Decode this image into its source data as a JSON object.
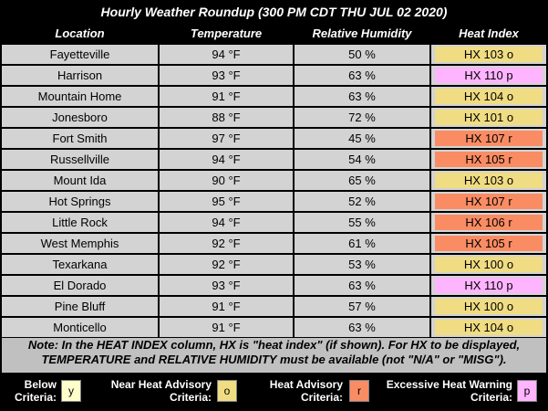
{
  "title": "Hourly Weather Roundup (300 PM CDT THU JUL 02 2020)",
  "headers": {
    "location": "Location",
    "temperature": "Temperature",
    "humidity": "Relative Humidity",
    "heat_index": "Heat Index"
  },
  "rows": [
    {
      "location": "Fayetteville",
      "temperature": "94 °F",
      "humidity": "50 %",
      "heat_index": "HX 103 o",
      "level": "o"
    },
    {
      "location": "Harrison",
      "temperature": "93 °F",
      "humidity": "63 %",
      "heat_index": "HX 110 p",
      "level": "p"
    },
    {
      "location": "Mountain Home",
      "temperature": "91 °F",
      "humidity": "63 %",
      "heat_index": "HX 104 o",
      "level": "o"
    },
    {
      "location": "Jonesboro",
      "temperature": "88 °F",
      "humidity": "72 %",
      "heat_index": "HX 101 o",
      "level": "o"
    },
    {
      "location": "Fort Smith",
      "temperature": "97 °F",
      "humidity": "45 %",
      "heat_index": "HX 107 r",
      "level": "r"
    },
    {
      "location": "Russellville",
      "temperature": "94 °F",
      "humidity": "54 %",
      "heat_index": "HX 105 r",
      "level": "r"
    },
    {
      "location": "Mount Ida",
      "temperature": "90 °F",
      "humidity": "65 %",
      "heat_index": "HX 103 o",
      "level": "o"
    },
    {
      "location": "Hot Springs",
      "temperature": "95 °F",
      "humidity": "52 %",
      "heat_index": "HX 107 r",
      "level": "r"
    },
    {
      "location": "Little Rock",
      "temperature": "94 °F",
      "humidity": "55 %",
      "heat_index": "HX 106 r",
      "level": "r"
    },
    {
      "location": "West Memphis",
      "temperature": "92 °F",
      "humidity": "61 %",
      "heat_index": "HX 105 r",
      "level": "r"
    },
    {
      "location": "Texarkana",
      "temperature": "92 °F",
      "humidity": "53 %",
      "heat_index": "HX 100 o",
      "level": "o"
    },
    {
      "location": "El Dorado",
      "temperature": "93 °F",
      "humidity": "63 %",
      "heat_index": "HX 110 p",
      "level": "p"
    },
    {
      "location": "Pine Bluff",
      "temperature": "91 °F",
      "humidity": "57 %",
      "heat_index": "HX 100 o",
      "level": "o"
    },
    {
      "location": "Monticello",
      "temperature": "91 °F",
      "humidity": "63 %",
      "heat_index": "HX 104 o",
      "level": "o"
    }
  ],
  "note": {
    "line1": "Note: In the HEAT INDEX column, HX is \"heat index\" (if shown). For HX to be displayed,",
    "line2": "TEMPERATURE and RELATIVE HUMIDITY must be available (not \"N/A\" or \"MISG\")."
  },
  "legend": [
    {
      "line1": "Below",
      "line2": "Criteria:",
      "code": "y"
    },
    {
      "line1": "Near Heat Advisory",
      "line2": "Criteria:",
      "code": "o"
    },
    {
      "line1": "Heat Advisory",
      "line2": "Criteria:",
      "code": "r"
    },
    {
      "line1": "Excessive Heat Warning",
      "line2": "Criteria:",
      "code": "p"
    }
  ],
  "colors": {
    "row_bg": "#d3d3d3",
    "header_bg": "#000000",
    "note_bg": "#c0c0c0",
    "y": "#ffffcc",
    "o": "#f0dc82",
    "r": "#fa8c64",
    "p": "#ffb4ff"
  }
}
